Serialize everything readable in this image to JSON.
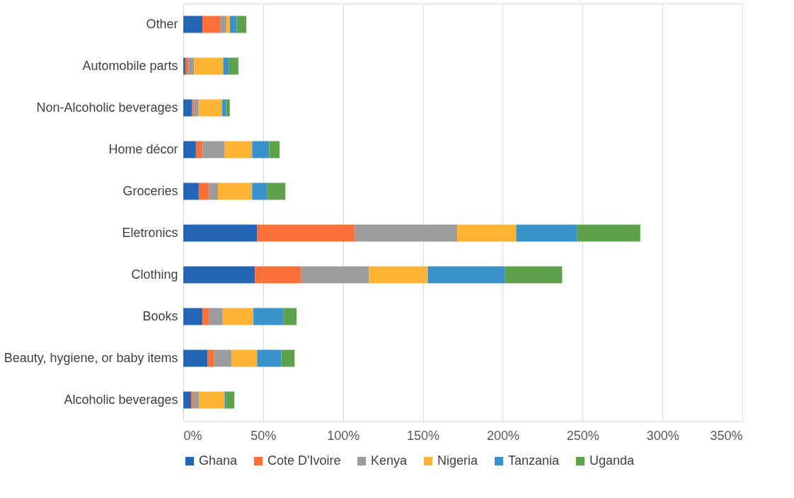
{
  "chart_data": {
    "type": "bar",
    "orientation": "horizontal",
    "stacked": true,
    "categories": [
      "Other",
      "Automobile parts",
      "Non-Alcoholic beverages",
      "Home décor",
      "Groceries",
      "Eletronics",
      "Clothing",
      "Books",
      "Beauty, hygiene, or baby items",
      "Alcoholic beverages"
    ],
    "series": [
      {
        "name": "Ghana",
        "color": "#2266b5",
        "values": [
          12.0,
          1.3,
          5.5,
          7.9,
          9.7,
          46.1,
          44.9,
          12.1,
          15.1,
          4.9
        ]
      },
      {
        "name": "Cote D'Ivoire",
        "color": "#fb7039",
        "values": [
          11.4,
          1.9,
          1.3,
          4.3,
          6.5,
          61.2,
          29.0,
          4.2,
          4.3,
          1.2
        ]
      },
      {
        "name": "Kenya",
        "color": "#9c9c9c",
        "values": [
          3.6,
          3.6,
          2.8,
          13.5,
          5.5,
          64.2,
          42.3,
          8.4,
          10.8,
          3.6
        ]
      },
      {
        "name": "Nigeria",
        "color": "#ffb334",
        "values": [
          2.2,
          18.2,
          14.8,
          17.4,
          21.4,
          36.9,
          36.9,
          19.2,
          16.0,
          16.2
        ]
      },
      {
        "name": "Tanzania",
        "color": "#3a92cb",
        "values": [
          4.3,
          3.7,
          2.5,
          10.7,
          9.5,
          38.0,
          48.1,
          18.9,
          15.1,
          1.2
        ]
      },
      {
        "name": "Uganda",
        "color": "#5da14b",
        "values": [
          6.0,
          5.8,
          2.2,
          6.5,
          11.3,
          39.7,
          36.0,
          8.1,
          8.4,
          4.9
        ]
      }
    ],
    "xlim": [
      0,
      350
    ],
    "xticks": [
      {
        "value": 0,
        "label": "0%"
      },
      {
        "value": 50,
        "label": "50%"
      },
      {
        "value": 100,
        "label": "100%"
      },
      {
        "value": 150,
        "label": "150%"
      },
      {
        "value": 200,
        "label": "200%"
      },
      {
        "value": 250,
        "label": "250%"
      },
      {
        "value": 300,
        "label": "300%"
      },
      {
        "value": 350,
        "label": "350%"
      }
    ],
    "grid": "x",
    "legend": "bottom"
  }
}
